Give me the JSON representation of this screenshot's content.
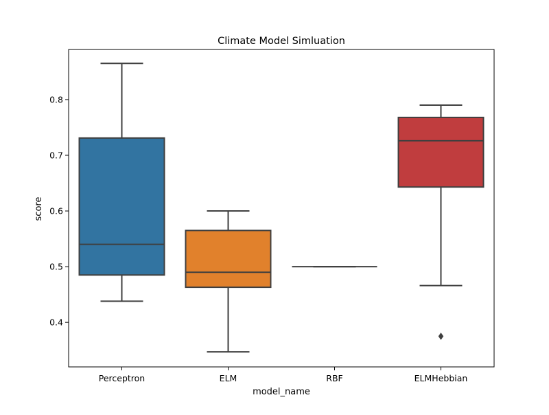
{
  "chart_data": {
    "type": "box",
    "title": "Climate Model Simluation",
    "xlabel": "model_name",
    "ylabel": "score",
    "categories": [
      "Perceptron",
      "ELM",
      "RBF",
      "ELMHebbian"
    ],
    "ylim": [
      0.32,
      0.89
    ],
    "yticks": [
      0.4,
      0.5,
      0.6,
      0.7,
      0.8
    ],
    "ytick_labels": [
      "0.4",
      "0.5",
      "0.6",
      "0.7",
      "0.8"
    ],
    "grid": false,
    "boxes": [
      {
        "category": "Perceptron",
        "whisker_low": 0.438,
        "q1": 0.485,
        "median": 0.54,
        "q3": 0.731,
        "whisker_high": 0.865,
        "outliers": [],
        "color": "#3274a1"
      },
      {
        "category": "ELM",
        "whisker_low": 0.347,
        "q1": 0.463,
        "median": 0.49,
        "q3": 0.565,
        "whisker_high": 0.6,
        "outliers": [],
        "color": "#e1812c"
      },
      {
        "category": "RBF",
        "whisker_low": 0.5,
        "q1": 0.5,
        "median": 0.5,
        "q3": 0.5,
        "whisker_high": 0.5,
        "outliers": [],
        "color": "#3a923a"
      },
      {
        "category": "ELMHebbian",
        "whisker_low": 0.466,
        "q1": 0.643,
        "median": 0.726,
        "q3": 0.768,
        "whisker_high": 0.79,
        "outliers": [
          0.375
        ],
        "color": "#c03d3e"
      }
    ],
    "line_color": "#3f3f3f"
  }
}
